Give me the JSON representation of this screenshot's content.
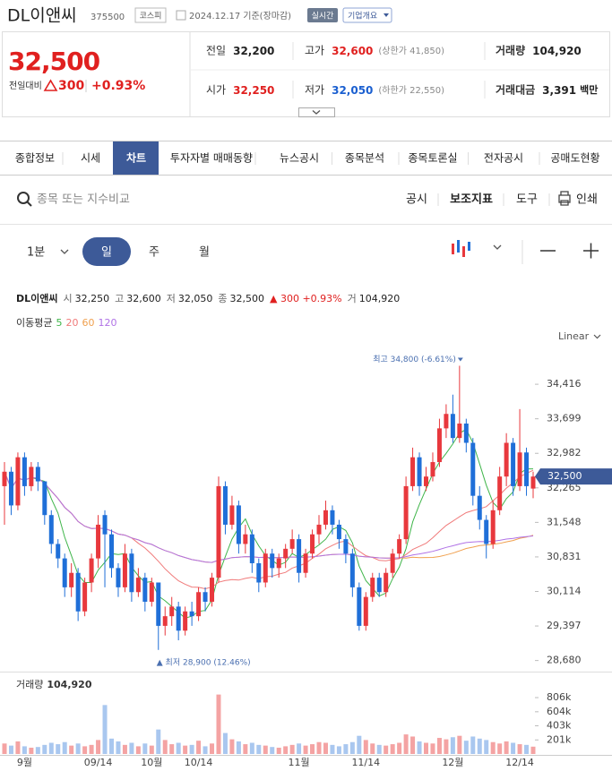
{
  "header": {
    "name": "DL이앤씨",
    "code": "375500",
    "market": "코스피",
    "date": "2024.12.17",
    "basis": "기준(장마감)",
    "realtime": "실시간",
    "company": "기업개요"
  },
  "quote": {
    "price": "32,500",
    "change_label": "전일대비",
    "change": "300",
    "change_pct": "+0.93%",
    "color": "#e0201f"
  },
  "stats": [
    [
      {
        "label": "전일",
        "value": "32,200",
        "color": "#222"
      },
      {
        "label": "고가",
        "value": "32,600",
        "color": "#e0201f",
        "note": "(상한가 41,850)"
      },
      {
        "label": "거래량",
        "value": "104,920",
        "color": "#222"
      }
    ],
    [
      {
        "label": "시가",
        "value": "32,250",
        "color": "#e0201f"
      },
      {
        "label": "저가",
        "value": "32,050",
        "color": "#1a5fd0",
        "note": "(하한가 22,550)"
      },
      {
        "label": "거래대금",
        "value": "3,391",
        "unit": "백만",
        "color": "#222"
      }
    ]
  ],
  "tabs": [
    "종합정보",
    "시세",
    "차트",
    "투자자별 매매동향",
    "뉴스공시",
    "종목분석",
    "종목토론실",
    "전자공시",
    "공매도현황"
  ],
  "active_tab": 2,
  "search": {
    "placeholder": "종목 또는 지수비교",
    "actions": [
      "공시",
      "보조지표",
      "도구",
      "인쇄"
    ]
  },
  "periods": {
    "interval": "1분",
    "options": [
      "일",
      "주",
      "월"
    ],
    "active": 0
  },
  "chart_data": {
    "type": "candlestick",
    "name": "DL이앤씨",
    "summary": [
      {
        "label": "시",
        "value": "32,250"
      },
      {
        "label": "고",
        "value": "32,600"
      },
      {
        "label": "저",
        "value": "32,050"
      },
      {
        "label": "종",
        "value": "32,500"
      },
      {
        "value": "▲ 300 +0.93%",
        "color": "#e0201f"
      },
      {
        "label": "거",
        "value": "104,920"
      }
    ],
    "moving_averages": {
      "label": "이동평균",
      "periods": [
        5,
        20,
        60,
        120
      ],
      "colors": [
        "#3fb54a",
        "#f07a7a",
        "#f0a04e",
        "#b072e6"
      ]
    },
    "scale": "Linear",
    "up_color": "#e8383d",
    "down_color": "#1f6fd8",
    "volume_up_color": "#f4a3a3",
    "volume_down_color": "#a9c7ef",
    "ylim": [
      28450,
      35050
    ],
    "yticks": [
      {
        "value": 28680,
        "label": "28,680"
      },
      {
        "value": 29397,
        "label": "29,397"
      },
      {
        "value": 30114,
        "label": "30,114"
      },
      {
        "value": 30831,
        "label": "30,831"
      },
      {
        "value": 31548,
        "label": "31,548"
      },
      {
        "value": 32265,
        "label": "32,265"
      },
      {
        "value": 32982,
        "label": "32,982"
      },
      {
        "value": 33699,
        "label": "33,699"
      },
      {
        "value": 34416,
        "label": "34,416"
      }
    ],
    "last_price": {
      "value": 32500,
      "label": "32,500"
    },
    "annotations": [
      {
        "text": "최고 34,800 (-6.61%)"
      },
      {
        "text": "▲ 최저 28,900 (12.46%)"
      }
    ],
    "volume_label": "거래량",
    "volume_value_label": "104,920",
    "vol_ylim": [
      0,
      1050000
    ],
    "vol_yticks": [
      {
        "value": 201000,
        "label": "201k"
      },
      {
        "value": 403000,
        "label": "403k"
      },
      {
        "value": 604000,
        "label": "604k"
      },
      {
        "value": 806000,
        "label": "806k"
      }
    ],
    "categories": [
      null,
      null,
      null,
      "9월",
      null,
      null,
      null,
      null,
      null,
      null,
      null,
      null,
      null,
      null,
      "09/14",
      null,
      null,
      null,
      null,
      null,
      null,
      null,
      "10월",
      null,
      null,
      null,
      null,
      null,
      null,
      "10/14",
      null,
      null,
      null,
      null,
      null,
      null,
      null,
      null,
      null,
      null,
      null,
      null,
      null,
      null,
      "11월",
      null,
      null,
      null,
      null,
      null,
      null,
      null,
      null,
      null,
      "11/14",
      null,
      null,
      null,
      null,
      null,
      null,
      null,
      null,
      null,
      null,
      null,
      null,
      "12월",
      null,
      null,
      null,
      null,
      null,
      null,
      null,
      null,
      null,
      "12/14",
      null,
      null
    ],
    "ohlc": [
      [
        32300,
        32800,
        31500,
        32600
      ],
      [
        32600,
        32700,
        31700,
        31900
      ],
      [
        31900,
        33000,
        31800,
        32900
      ],
      [
        32900,
        33000,
        32100,
        32300
      ],
      [
        32300,
        32800,
        32200,
        32700
      ],
      [
        32700,
        32800,
        32200,
        32400
      ],
      [
        32400,
        32400,
        31500,
        31700
      ],
      [
        31700,
        31800,
        30900,
        31100
      ],
      [
        31100,
        31200,
        30600,
        30800
      ],
      [
        30800,
        30900,
        30000,
        30200
      ],
      [
        30200,
        30700,
        30000,
        30500
      ],
      [
        30500,
        30600,
        29500,
        29700
      ],
      [
        29700,
        30400,
        29600,
        30300
      ],
      [
        30300,
        30900,
        30100,
        30800
      ],
      [
        30800,
        31700,
        30600,
        31500
      ],
      [
        31700,
        31800,
        30200,
        31300
      ],
      [
        31300,
        31400,
        30400,
        30600
      ],
      [
        30600,
        30700,
        30000,
        30200
      ],
      [
        30200,
        31100,
        30100,
        30900
      ],
      [
        30900,
        31000,
        29900,
        30100
      ],
      [
        30100,
        30600,
        30000,
        30400
      ],
      [
        30400,
        30500,
        29700,
        29900
      ],
      [
        29900,
        30400,
        29800,
        30300
      ],
      [
        30300,
        30300,
        28900,
        29400
      ],
      [
        29400,
        29800,
        29200,
        29600
      ],
      [
        29600,
        30000,
        29400,
        29800
      ],
      [
        29800,
        29900,
        29100,
        29300
      ],
      [
        29300,
        29800,
        29200,
        29700
      ],
      [
        29700,
        29900,
        29400,
        29600
      ],
      [
        29600,
        30200,
        29500,
        30100
      ],
      [
        30100,
        30200,
        29700,
        29900
      ],
      [
        29900,
        30500,
        29800,
        30400
      ],
      [
        30400,
        32500,
        30300,
        32300
      ],
      [
        32300,
        32400,
        31300,
        31500
      ],
      [
        31500,
        32100,
        31400,
        31900
      ],
      [
        31900,
        32000,
        30900,
        31100
      ],
      [
        31100,
        31500,
        30900,
        31300
      ],
      [
        31300,
        31400,
        30500,
        30700
      ],
      [
        30700,
        30800,
        30100,
        30300
      ],
      [
        30300,
        31000,
        30200,
        30900
      ],
      [
        30900,
        31000,
        30400,
        30600
      ],
      [
        30600,
        30900,
        30400,
        30800
      ],
      [
        30800,
        31100,
        30600,
        31000
      ],
      [
        31000,
        31400,
        30900,
        31200
      ],
      [
        31200,
        31300,
        30300,
        30500
      ],
      [
        30500,
        31000,
        30400,
        30900
      ],
      [
        30900,
        31400,
        30800,
        31300
      ],
      [
        31300,
        31700,
        31100,
        31500
      ],
      [
        31500,
        32000,
        31400,
        31800
      ],
      [
        31800,
        31900,
        31300,
        31500
      ],
      [
        31500,
        31600,
        31000,
        31200
      ],
      [
        31200,
        31300,
        30700,
        30900
      ],
      [
        30900,
        31000,
        30000,
        30200
      ],
      [
        30200,
        30300,
        29300,
        29400
      ],
      [
        29400,
        30100,
        29300,
        30000
      ],
      [
        30000,
        30500,
        29900,
        30400
      ],
      [
        30400,
        30500,
        30000,
        30100
      ],
      [
        30100,
        30600,
        30000,
        30500
      ],
      [
        30500,
        31000,
        30400,
        30900
      ],
      [
        30900,
        31300,
        30800,
        31200
      ],
      [
        31200,
        32500,
        31100,
        32300
      ],
      [
        32300,
        33100,
        32200,
        32900
      ],
      [
        32900,
        33000,
        32100,
        32300
      ],
      [
        32300,
        32700,
        32200,
        32500
      ],
      [
        32500,
        33000,
        32400,
        32800
      ],
      [
        32800,
        33700,
        32700,
        33500
      ],
      [
        33500,
        34000,
        33300,
        33800
      ],
      [
        33800,
        34200,
        33200,
        33300
      ],
      [
        33300,
        34800,
        33200,
        33600
      ],
      [
        33600,
        33700,
        33000,
        33200
      ],
      [
        33200,
        33300,
        31900,
        32100
      ],
      [
        32100,
        32300,
        31400,
        31600
      ],
      [
        31600,
        31700,
        30800,
        31100
      ],
      [
        31100,
        32000,
        31000,
        31800
      ],
      [
        31800,
        32700,
        31700,
        32500
      ],
      [
        32500,
        33400,
        32300,
        33200
      ],
      [
        33200,
        33300,
        32100,
        32300
      ],
      [
        32300,
        33900,
        32200,
        33000
      ],
      [
        33000,
        33100,
        32100,
        32300
      ],
      [
        32250,
        32600,
        32050,
        32500
      ]
    ],
    "volume": [
      150000,
      120000,
      180000,
      110000,
      90000,
      100000,
      130000,
      160000,
      140000,
      170000,
      120000,
      150000,
      110000,
      130000,
      200000,
      700000,
      220000,
      180000,
      130000,
      160000,
      110000,
      150000,
      120000,
      350000,
      200000,
      140000,
      160000,
      120000,
      130000,
      190000,
      110000,
      150000,
      850000,
      300000,
      210000,
      180000,
      140000,
      160000,
      130000,
      120000,
      100000,
      90000,
      110000,
      130000,
      150000,
      120000,
      140000,
      170000,
      160000,
      130000,
      110000,
      140000,
      170000,
      260000,
      200000,
      150000,
      130000,
      120000,
      140000,
      160000,
      280000,
      250000,
      180000,
      160000,
      150000,
      230000,
      210000,
      240000,
      260000,
      190000,
      250000,
      220000,
      200000,
      170000,
      150000,
      180000,
      160000,
      140000,
      130000,
      104920
    ]
  }
}
